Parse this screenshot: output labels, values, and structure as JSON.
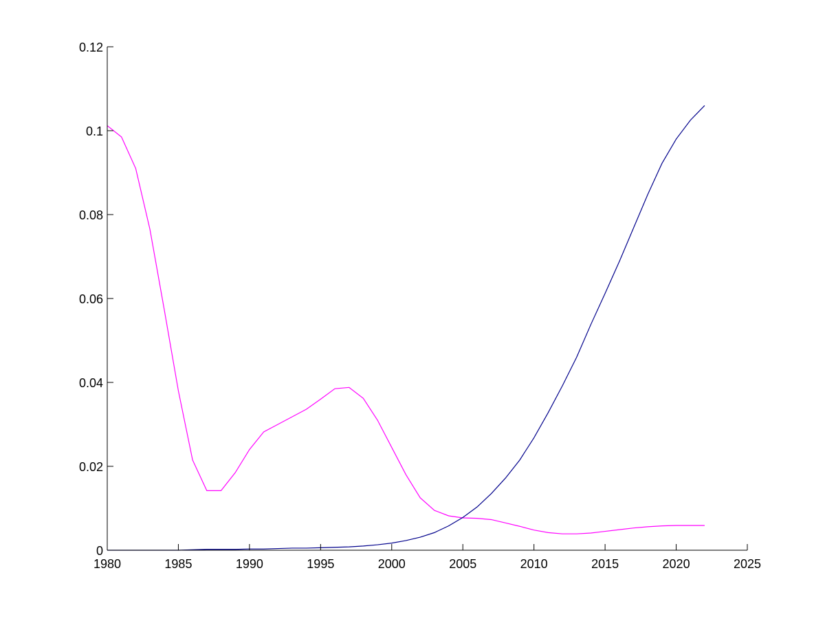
{
  "chart_data": {
    "type": "line",
    "xlim": [
      1980,
      2025
    ],
    "ylim": [
      0,
      0.12
    ],
    "grid": false,
    "x_ticks": [
      {
        "value": 1980,
        "label": "1980"
      },
      {
        "value": 1985,
        "label": "1985"
      },
      {
        "value": 1990,
        "label": "1990"
      },
      {
        "value": 1995,
        "label": "1995"
      },
      {
        "value": 2000,
        "label": "2000"
      },
      {
        "value": 2005,
        "label": "2005"
      },
      {
        "value": 2010,
        "label": "2010"
      },
      {
        "value": 2015,
        "label": "2015"
      },
      {
        "value": 2020,
        "label": "2020"
      },
      {
        "value": 2025,
        "label": "2025"
      }
    ],
    "y_ticks": [
      {
        "value": 0,
        "label": "0"
      },
      {
        "value": 0.02,
        "label": "0.02"
      },
      {
        "value": 0.04,
        "label": "0.04"
      },
      {
        "value": 0.06,
        "label": "0.06"
      },
      {
        "value": 0.08,
        "label": "0.08"
      },
      {
        "value": 0.1,
        "label": "0.1"
      },
      {
        "value": 0.12,
        "label": "0.12"
      }
    ],
    "x": [
      1980,
      1981,
      1982,
      1983,
      1984,
      1985,
      1986,
      1987,
      1988,
      1989,
      1990,
      1991,
      1992,
      1993,
      1994,
      1995,
      1996,
      1997,
      1998,
      1999,
      2000,
      2001,
      2002,
      2003,
      2004,
      2005,
      2006,
      2007,
      2008,
      2009,
      2010,
      2011,
      2012,
      2013,
      2014,
      2015,
      2016,
      2017,
      2018,
      2019,
      2020,
      2021,
      2022
    ],
    "series": [
      {
        "color": "#ff00ff",
        "values": [
          0.1012,
          0.0985,
          0.091,
          0.0765,
          0.0575,
          0.038,
          0.0215,
          0.0142,
          0.0142,
          0.0185,
          0.024,
          0.0282,
          0.03,
          0.0318,
          0.0336,
          0.036,
          0.0385,
          0.0388,
          0.0362,
          0.031,
          0.0245,
          0.018,
          0.0125,
          0.0095,
          0.0082,
          0.0077,
          0.0076,
          0.0073,
          0.0065,
          0.0057,
          0.0048,
          0.0042,
          0.0039,
          0.0039,
          0.0041,
          0.0045,
          0.0049,
          0.0053,
          0.0056,
          0.0058,
          0.0059,
          0.0059,
          0.0059
        ]
      },
      {
        "color": "#00008b",
        "values": [
          0.0,
          0.0,
          0.0,
          0.0,
          0.0,
          0.0,
          0.0001,
          0.0002,
          0.0002,
          0.0002,
          0.0003,
          0.0003,
          0.0004,
          0.0005,
          0.0005,
          0.0006,
          0.0007,
          0.0008,
          0.001,
          0.0013,
          0.0017,
          0.0023,
          0.0031,
          0.0042,
          0.0058,
          0.0078,
          0.0103,
          0.0135,
          0.0172,
          0.0215,
          0.0268,
          0.0328,
          0.0392,
          0.046,
          0.0538,
          0.0612,
          0.0688,
          0.0768,
          0.0848,
          0.0922,
          0.098,
          0.1025,
          0.106
        ]
      }
    ]
  }
}
